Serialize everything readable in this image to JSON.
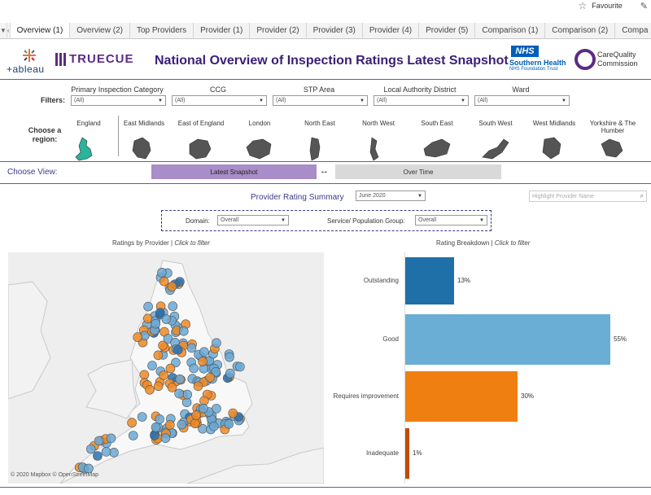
{
  "topbar": {
    "favourite_label": "Favourite",
    "star_icon": "star-icon",
    "edit_icon": "pencil-icon"
  },
  "tabs": [
    {
      "label": "Overview (1)",
      "active": true
    },
    {
      "label": "Overview (2)"
    },
    {
      "label": "Top Providers"
    },
    {
      "label": "Provider (1)"
    },
    {
      "label": "Provider (2)"
    },
    {
      "label": "Provider (3)"
    },
    {
      "label": "Provider (4)"
    },
    {
      "label": "Provider (5)"
    },
    {
      "label": "Comparison (1)"
    },
    {
      "label": "Comparison (2)"
    },
    {
      "label": "Compa"
    }
  ],
  "header": {
    "tableau_text": "+ableau",
    "truecue_text": "TRUECUE",
    "title": "National Overview of Inspection Ratings Latest Snapshot",
    "nhs_badge": "NHS",
    "nhs_line1": "Southern Health",
    "nhs_line2": "NHS Foundation Trust",
    "cqc_line1": "CareQuality",
    "cqc_line2": "Commission",
    "colors": {
      "title": "#3a1e78",
      "truecue": "#5b2b86",
      "nhs": "#005eb8"
    }
  },
  "filters": {
    "label": "Filters:",
    "items": [
      {
        "label": "Primary Inspection Category",
        "value": "(All)"
      },
      {
        "label": "CCG",
        "value": "(All)"
      },
      {
        "label": "STP Area",
        "value": "(All)"
      },
      {
        "label": "Local Authority District",
        "value": "(All)"
      },
      {
        "label": "Ward",
        "value": "(All)"
      }
    ]
  },
  "regions": {
    "label": "Choose a region:",
    "items": [
      "England",
      "East Midlands",
      "East of England",
      "London",
      "North East",
      "North West",
      "South East",
      "South West",
      "West Midlands",
      "Yorkshire & The Humber"
    ],
    "selected": "England",
    "selected_color": "#2bb39b",
    "shape_color": "#555555"
  },
  "view": {
    "label": "Choose View:",
    "latest": "Latest Snapshot",
    "over_time": "Over Time",
    "swap_icon": "↔"
  },
  "summary": {
    "title": "Provider Rating Summary",
    "date": "June 2020",
    "highlight_placeholder": "Highlight Provider Name",
    "domain_label": "Domain:",
    "domain_value": "Overall",
    "service_label": "Service/ Population Group:",
    "service_value": "Overall"
  },
  "map": {
    "title": "Ratings by Provider",
    "title_hint": "Click to filter",
    "credit": "© 2020 Mapbox © OpenStreetMap",
    "colors": {
      "good": "#6aa9d6",
      "requires_improvement": "#f08a24",
      "outstanding": "#2a72b0"
    }
  },
  "chart_data": {
    "type": "bar",
    "orientation": "horizontal",
    "title": "Rating Breakdown",
    "title_hint": "Click to filter",
    "categories": [
      "Outstanding",
      "Good",
      "Requires improvement",
      "Inadequate"
    ],
    "values": [
      13,
      55,
      30,
      1
    ],
    "value_labels": [
      "13%",
      "55%",
      "30%",
      "1%"
    ],
    "unit": "%",
    "colors": [
      "#1f6fa8",
      "#6aaed6",
      "#f07f12",
      "#c24b00"
    ],
    "xlim": [
      0,
      56
    ]
  }
}
